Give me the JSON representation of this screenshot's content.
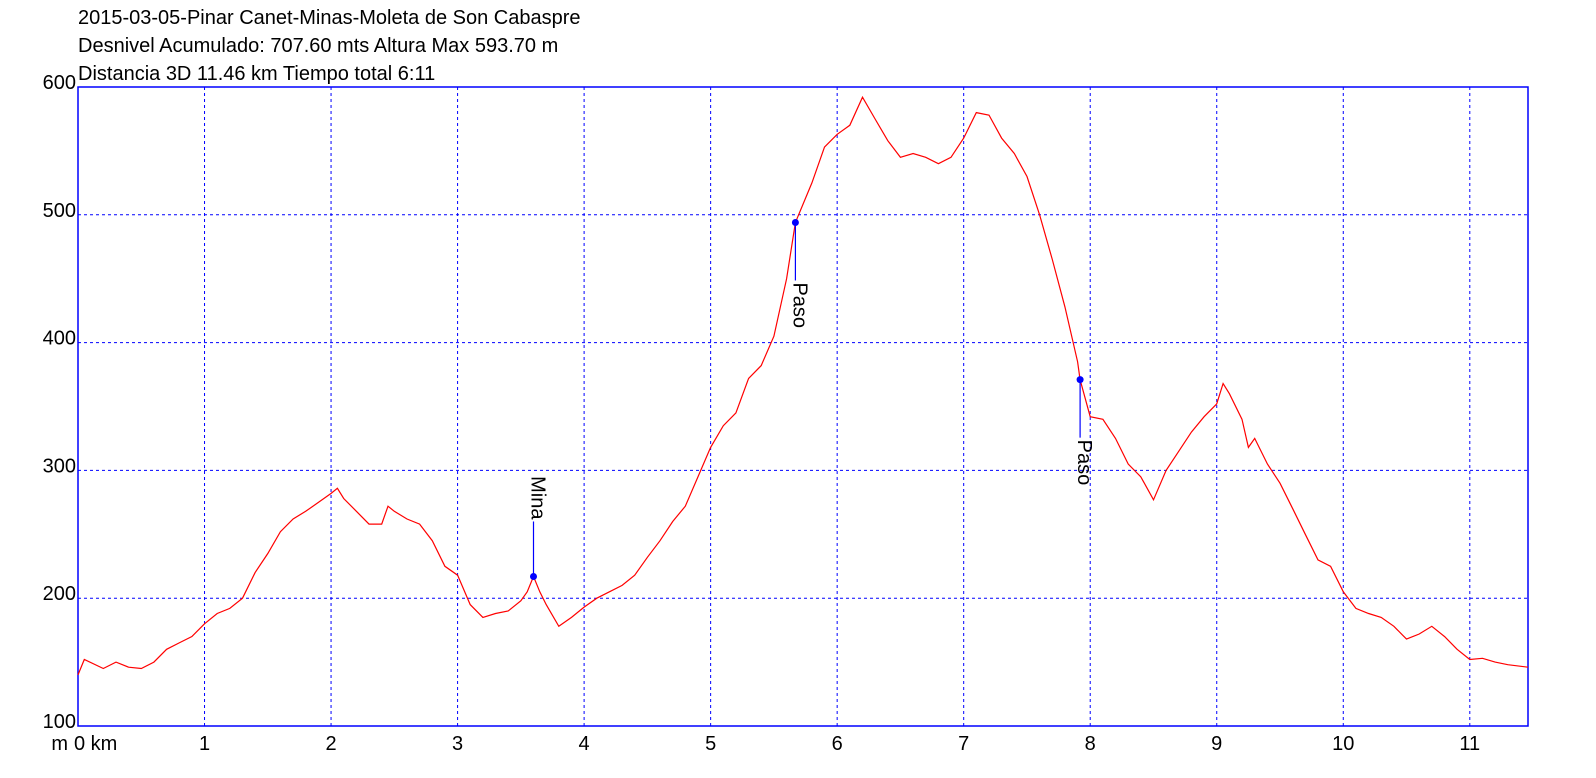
{
  "chart_data": {
    "type": "line",
    "title_lines": [
      "2015-03-05-Pinar Canet-Minas-Moleta de Son Cabaspre",
      "Desnivel Acumulado: 707.60 mts  Altura Max 593.70 m",
      "Distancia 3D 11.46 km  Tiempo total 6:11"
    ],
    "y_unit": "m",
    "x": [
      0,
      0.05,
      0.2,
      0.3,
      0.4,
      0.5,
      0.6,
      0.7,
      0.8,
      0.9,
      1.0,
      1.1,
      1.2,
      1.3,
      1.4,
      1.5,
      1.6,
      1.7,
      1.8,
      1.9,
      2.0,
      2.05,
      2.1,
      2.2,
      2.3,
      2.4,
      2.45,
      2.5,
      2.6,
      2.7,
      2.8,
      2.9,
      3.0,
      3.1,
      3.2,
      3.3,
      3.4,
      3.5,
      3.55,
      3.6,
      3.65,
      3.7,
      3.8,
      3.9,
      4.0,
      4.1,
      4.2,
      4.3,
      4.4,
      4.5,
      4.6,
      4.7,
      4.8,
      4.9,
      5.0,
      5.1,
      5.2,
      5.3,
      5.4,
      5.5,
      5.6,
      5.67,
      5.8,
      5.9,
      6.0,
      6.1,
      6.2,
      6.3,
      6.4,
      6.5,
      6.6,
      6.7,
      6.8,
      6.9,
      7.0,
      7.1,
      7.2,
      7.3,
      7.4,
      7.5,
      7.6,
      7.7,
      7.8,
      7.9,
      7.92,
      8.0,
      8.1,
      8.2,
      8.3,
      8.4,
      8.5,
      8.6,
      8.7,
      8.8,
      8.9,
      9.0,
      9.05,
      9.1,
      9.2,
      9.25,
      9.3,
      9.4,
      9.5,
      9.6,
      9.7,
      9.8,
      9.9,
      10.0,
      10.1,
      10.2,
      10.3,
      10.4,
      10.5,
      10.6,
      10.7,
      10.8,
      10.9,
      11.0,
      11.1,
      11.2,
      11.3,
      11.46
    ],
    "series": [
      {
        "color": "#ff0000",
        "values": [
          140,
          152,
          145,
          150,
          146,
          145,
          150,
          160,
          165,
          170,
          180,
          188,
          192,
          200,
          220,
          235,
          252,
          262,
          268,
          275,
          282,
          286,
          278,
          268,
          258,
          258,
          272,
          268,
          262,
          258,
          245,
          225,
          218,
          195,
          185,
          188,
          190,
          198,
          205,
          217,
          205,
          195,
          178,
          185,
          193,
          200,
          205,
          210,
          218,
          232,
          245,
          260,
          272,
          295,
          318,
          335,
          345,
          372,
          382,
          405,
          450,
          494,
          525,
          553,
          563,
          570,
          592,
          575,
          558,
          545,
          548,
          545,
          540,
          545,
          560,
          580,
          578,
          560,
          548,
          530,
          500,
          465,
          428,
          385,
          371,
          342,
          340,
          325,
          305,
          295,
          277,
          300,
          315,
          330,
          342,
          352,
          368,
          360,
          340,
          318,
          325,
          305,
          290,
          270,
          250,
          230,
          225,
          205,
          192,
          188,
          185,
          178,
          168,
          172,
          178,
          170,
          160,
          152,
          153,
          150,
          148,
          146
        ]
      }
    ],
    "annotations": [
      {
        "label": "Mina",
        "x": 3.6,
        "y": 217,
        "dir": "up"
      },
      {
        "label": "Paso",
        "x": 5.67,
        "y": 494,
        "dir": "down"
      },
      {
        "label": "Paso",
        "x": 7.92,
        "y": 371,
        "dir": "down"
      }
    ],
    "xlim": [
      0,
      11.46
    ],
    "ylim": [
      100,
      600
    ],
    "xticks": [
      {
        "value": 0,
        "label": "0 km"
      },
      1,
      2,
      3,
      4,
      5,
      6,
      7,
      8,
      9,
      10,
      11
    ],
    "yticks": [
      100,
      200,
      300,
      400,
      500,
      600
    ],
    "grid": true,
    "axis_color": "#0000ff",
    "grid_color": "#0000ff",
    "marker_color": "#0000ff"
  }
}
